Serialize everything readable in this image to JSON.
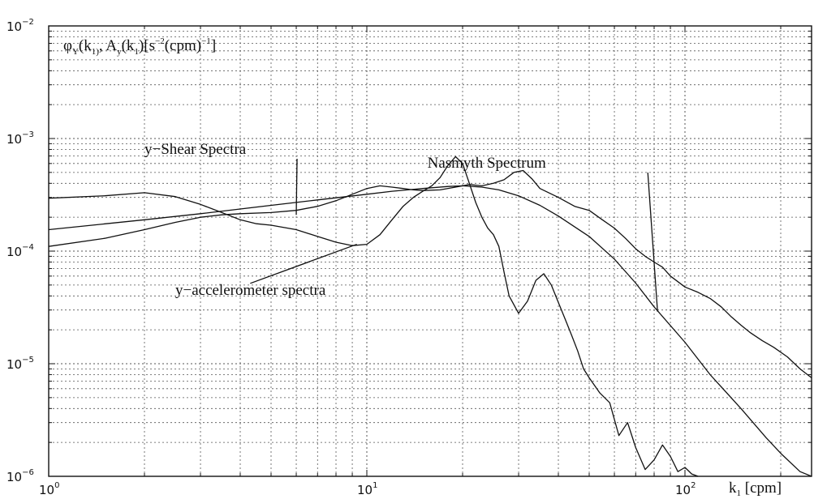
{
  "chart_data": {
    "type": "line",
    "x_scale": "log",
    "y_scale": "log",
    "xlim": [
      1,
      250
    ],
    "ylim": [
      1e-06,
      0.01
    ],
    "grid": true,
    "xlabel": {
      "base": "k",
      "sub": "1",
      "rest": " [cpm]"
    },
    "ylabel": {
      "p1": "φ",
      "p1sub": "Y",
      "p2": "(k",
      "p2sub": "1)",
      "p3": ", A",
      "p3sub": "y",
      "p4": "(k",
      "p4sub": "1",
      "p5": ")[s",
      "p5sup": "−2",
      "p6": "(cpm)",
      "p6sup": "−1",
      "p7": "]"
    },
    "x_ticks": [
      {
        "value": 1,
        "base": "10",
        "exp": "0"
      },
      {
        "value": 10,
        "base": "10",
        "exp": "1"
      },
      {
        "value": 100,
        "base": "10",
        "exp": "2"
      }
    ],
    "y_ticks": [
      {
        "value": 0.01,
        "base": "10",
        "exp": "−2"
      },
      {
        "value": 0.001,
        "base": "10",
        "exp": "−3"
      },
      {
        "value": 0.0001,
        "base": "10",
        "exp": "−4"
      },
      {
        "value": 1e-05,
        "base": "10",
        "exp": "−5"
      },
      {
        "value": 1e-06,
        "base": "10",
        "exp": "−6"
      }
    ],
    "annotations": [
      {
        "text": "y−Shear Spectra",
        "text_at": [
          2.0,
          0.00073
        ],
        "point_to": [
          6.0,
          0.00021
        ]
      },
      {
        "text": "Nasmyth Spectrum",
        "text_at": [
          15.5,
          0.00055
        ],
        "point_to": [
          82,
          2.9e-05
        ]
      },
      {
        "text": "y−accelerometer spectra",
        "text_at": [
          2.5,
          4.1e-05
        ],
        "point_to": [
          9.3,
          0.000115
        ]
      }
    ],
    "series": [
      {
        "key": "shear",
        "x": [
          1,
          1.5,
          2,
          2.5,
          3,
          3.5,
          4,
          5,
          6,
          7,
          8,
          9,
          10,
          11,
          12,
          13,
          14,
          15,
          17,
          19,
          21,
          23,
          25,
          27,
          29,
          31,
          33,
          35,
          40,
          45,
          50,
          55,
          60,
          65,
          70,
          75,
          80,
          85,
          90,
          100,
          110,
          120,
          130,
          140,
          150,
          160,
          175,
          190,
          210,
          230,
          250
        ],
        "y": [
          0.00011,
          0.00013,
          0.000155,
          0.00018,
          0.0002,
          0.00021,
          0.000215,
          0.00022,
          0.00023,
          0.00025,
          0.00028,
          0.00032,
          0.00036,
          0.00038,
          0.00037,
          0.00036,
          0.00035,
          0.000345,
          0.00035,
          0.00037,
          0.00039,
          0.00038,
          0.0004,
          0.00043,
          0.0005,
          0.00052,
          0.00044,
          0.00036,
          0.0003,
          0.00025,
          0.00023,
          0.00019,
          0.00016,
          0.00013,
          0.000105,
          9e-05,
          8e-05,
          7.2e-05,
          6e-05,
          4.8e-05,
          4.3e-05,
          3.8e-05,
          3.2e-05,
          2.6e-05,
          2.2e-05,
          1.9e-05,
          1.6e-05,
          1.4e-05,
          1.15e-05,
          9e-06,
          7.5e-06
        ]
      },
      {
        "key": "nasmyth",
        "x": [
          1,
          2,
          3,
          5,
          7,
          10,
          12,
          15,
          18,
          20,
          23,
          26,
          30,
          35,
          40,
          50,
          60,
          70,
          80,
          100,
          120,
          150,
          180,
          200,
          230,
          250
        ],
        "y": [
          0.000155,
          0.00019,
          0.000215,
          0.000255,
          0.000285,
          0.00032,
          0.00034,
          0.00036,
          0.000375,
          0.00038,
          0.00037,
          0.00035,
          0.00031,
          0.000255,
          0.000205,
          0.000135,
          8.5e-05,
          5.2e-05,
          3.2e-05,
          1.55e-05,
          8e-06,
          4e-06,
          2.2e-06,
          1.6e-06,
          1.1e-06,
          9e-07
        ]
      },
      {
        "key": "accel",
        "x": [
          1,
          1.5,
          2,
          2.5,
          3,
          3.5,
          4,
          4.5,
          5,
          6,
          7,
          8,
          9,
          10,
          11,
          12,
          13,
          14,
          15,
          16,
          17,
          18,
          19,
          20,
          21,
          22,
          23,
          24,
          25,
          26,
          27,
          28,
          30,
          32,
          34,
          36,
          38,
          40,
          42,
          44,
          46,
          48,
          50,
          54,
          58,
          62,
          66,
          70,
          75,
          80,
          85,
          90,
          95,
          100,
          105,
          110
        ],
        "y": [
          0.000295,
          0.00031,
          0.00033,
          0.000305,
          0.00026,
          0.00022,
          0.00019,
          0.000175,
          0.00017,
          0.000155,
          0.000135,
          0.00012,
          0.000112,
          0.000115,
          0.00014,
          0.00019,
          0.00025,
          0.0003,
          0.00034,
          0.00038,
          0.00045,
          0.00058,
          0.00069,
          0.0006,
          0.0004,
          0.00027,
          0.0002,
          0.00016,
          0.00014,
          0.00011,
          6.5e-05,
          4e-05,
          2.8e-05,
          3.6e-05,
          5.5e-05,
          6.3e-05,
          5e-05,
          3.5e-05,
          2.5e-05,
          1.8e-05,
          1.3e-05,
          9e-06,
          7.5e-06,
          5.5e-06,
          4.5e-06,
          2.3e-06,
          3e-06,
          1.8e-06,
          1.15e-06,
          1.4e-06,
          1.9e-06,
          1.5e-06,
          1.1e-06,
          1.2e-06,
          1.05e-06,
          1e-06
        ]
      }
    ]
  }
}
